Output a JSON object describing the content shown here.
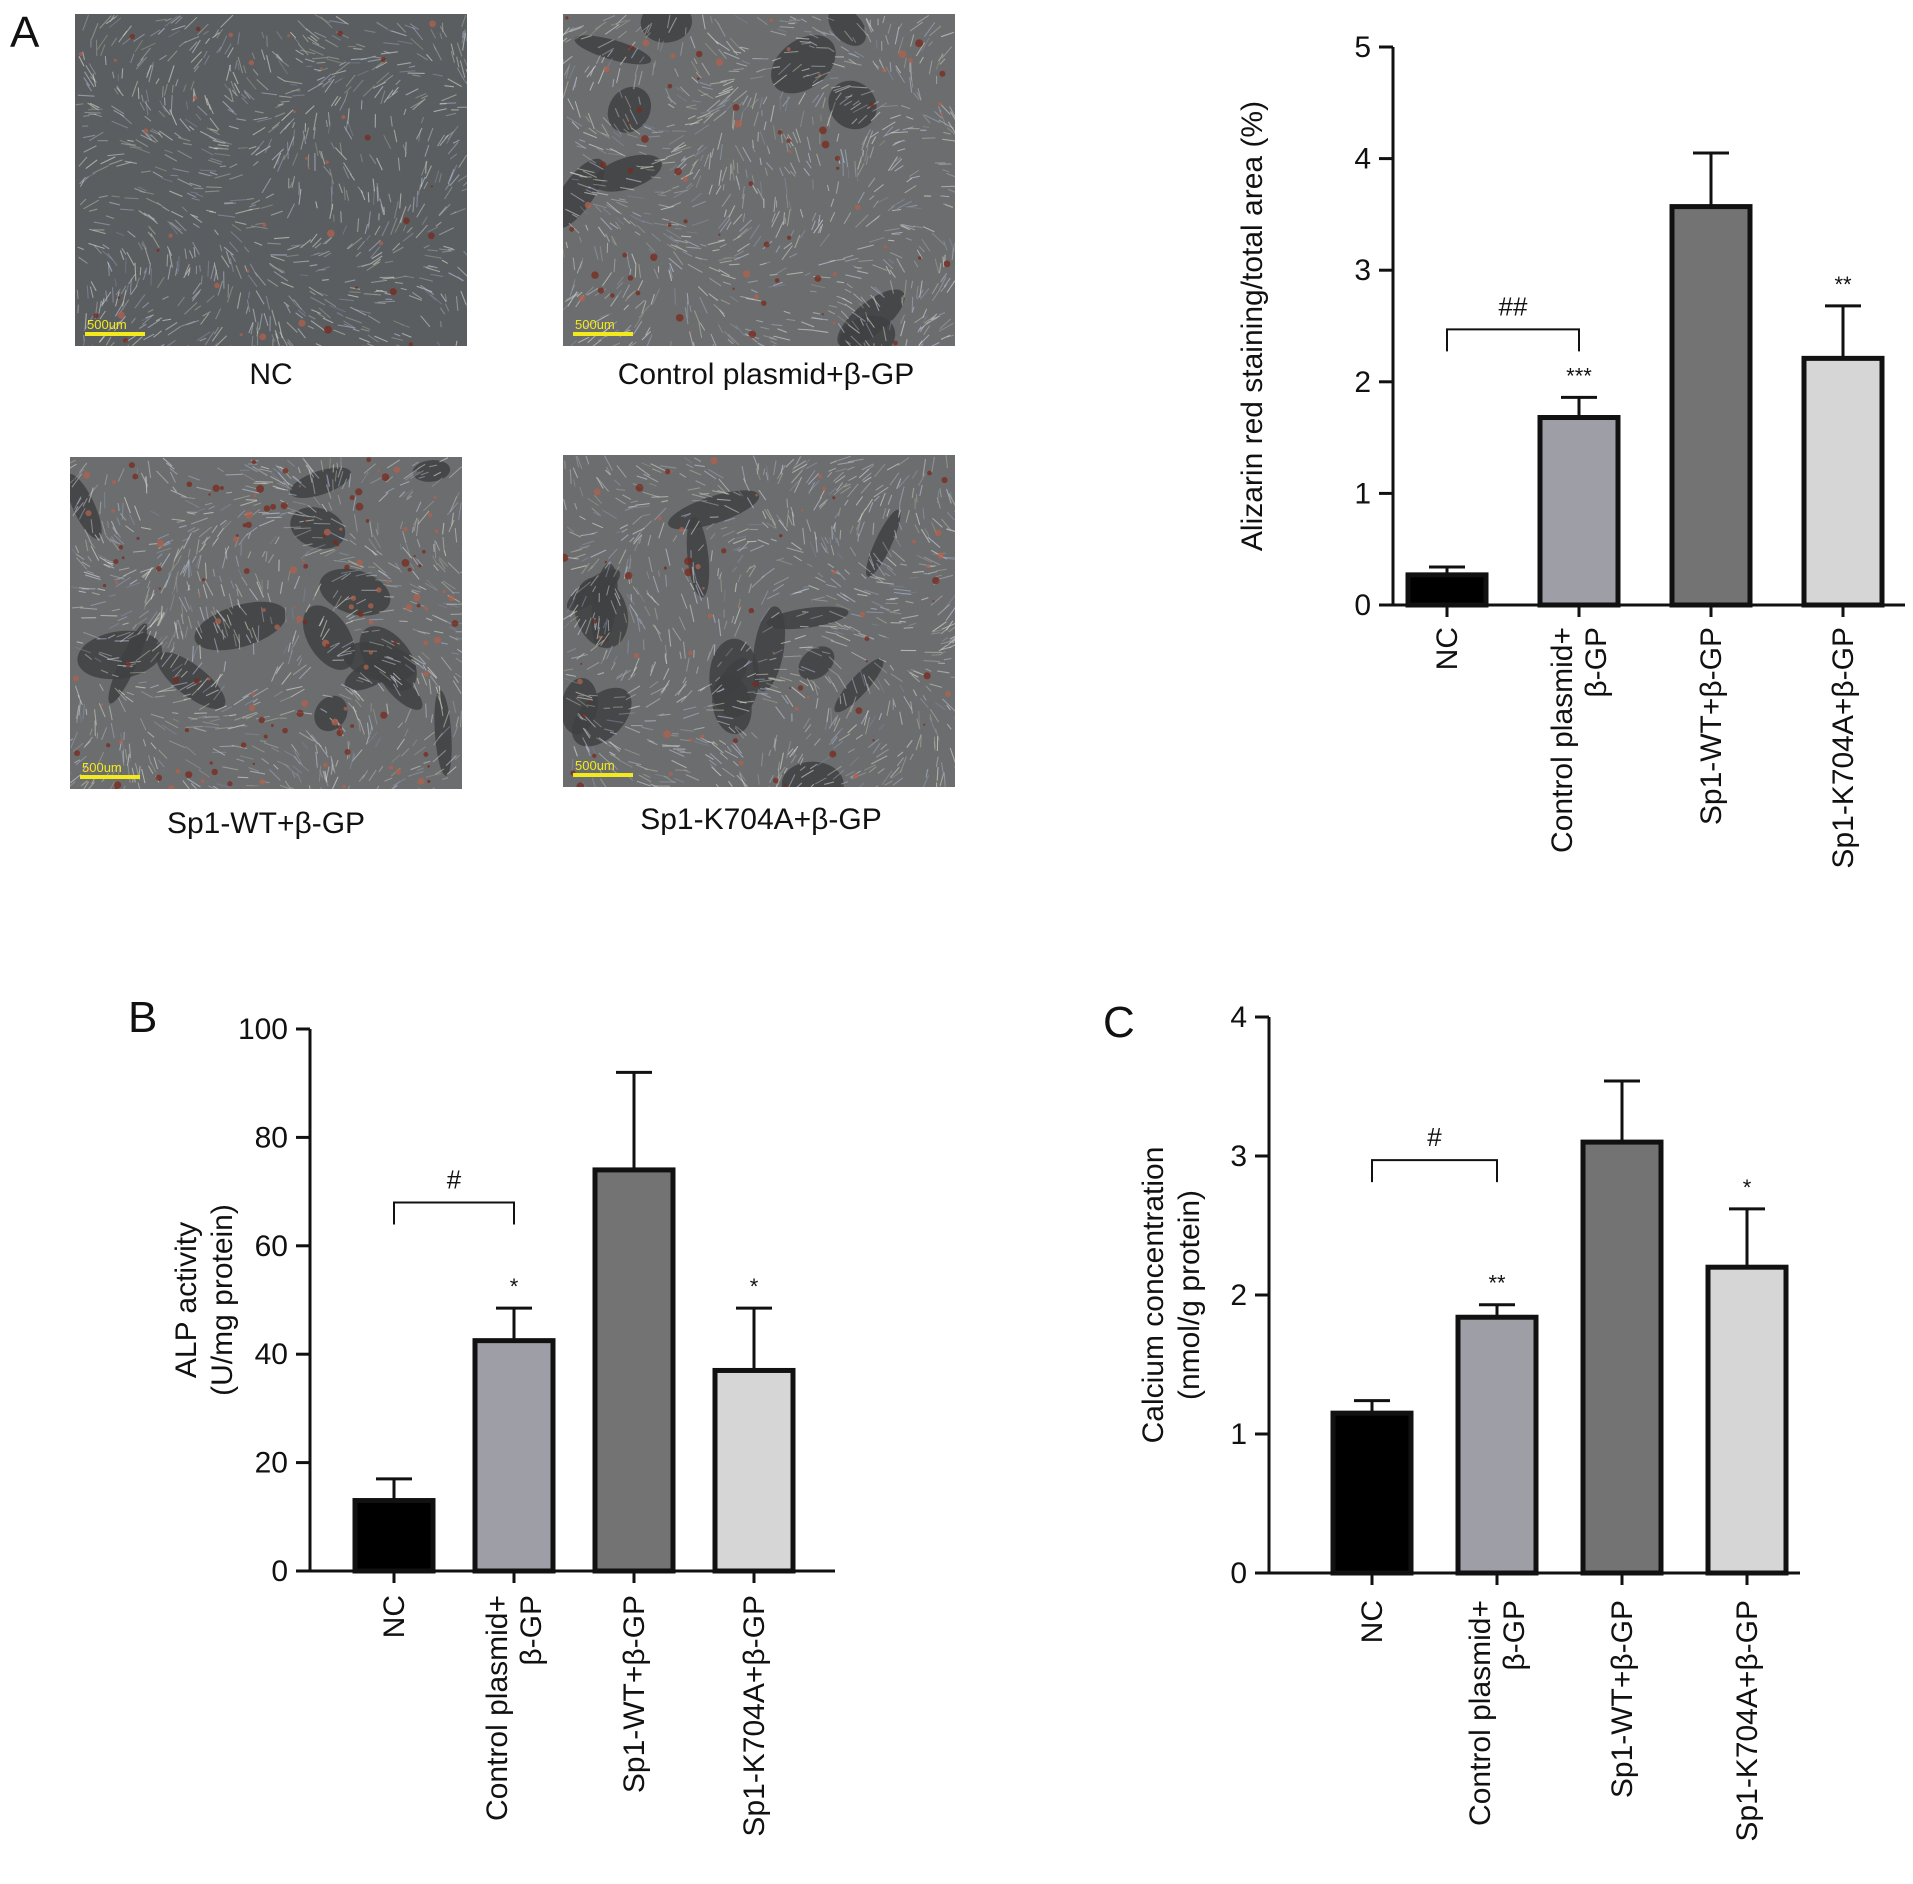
{
  "panels": {
    "A": "A",
    "B": "B",
    "C": "C"
  },
  "micrographs": [
    {
      "caption": "NC",
      "scale": "500um",
      "stain": "light"
    },
    {
      "caption": "Control plasmid+β-GP",
      "scale": "500um",
      "stain": "medium"
    },
    {
      "caption": "Sp1-WT+β-GP",
      "scale": "500um",
      "stain": "heavy"
    },
    {
      "caption": "Sp1-K704A+β-GP",
      "scale": "500um",
      "stain": "medium"
    }
  ],
  "colors": {
    "NC": "#000000",
    "Control": "#9e9ea6",
    "SpWT": "#737373",
    "SpK704A": "#d6d6d6",
    "scalebar": "#f2ea1c"
  },
  "chart_data": [
    {
      "id": "A",
      "type": "bar",
      "title": "",
      "ylabel": "Alizarin red staining/total area (%)",
      "ylim": [
        0,
        5
      ],
      "yticks": [
        "0",
        "1",
        "2",
        "3",
        "4",
        "5"
      ],
      "categories": [
        "NC",
        "Control plasmid+\nβ-GP",
        "Sp1-WT+β-GP",
        "Sp1-K704A+β-GP"
      ],
      "values": [
        0.27,
        1.68,
        3.57,
        2.21
      ],
      "errors": [
        0.07,
        0.18,
        0.48,
        0.47
      ],
      "stars": [
        "",
        "***",
        "",
        "**"
      ],
      "bracket": {
        "from": 0,
        "to": 1,
        "label": "##",
        "y": 2.47
      }
    },
    {
      "id": "B",
      "type": "bar",
      "title": "",
      "ylabel": "ALP activity\n(U/mg protein)",
      "ylim": [
        0,
        100
      ],
      "yticks": [
        "0",
        "20",
        "40",
        "60",
        "80",
        "100"
      ],
      "categories": [
        "NC",
        "Control plasmid+\nβ-GP",
        "Sp1-WT+β-GP",
        "Sp1-K704A+β-GP"
      ],
      "values": [
        13,
        42.5,
        74,
        37
      ],
      "errors": [
        4,
        6,
        18,
        11.5
      ],
      "stars": [
        "",
        "*",
        "",
        "*"
      ],
      "bracket": {
        "from": 0,
        "to": 1,
        "label": "#",
        "y": 68
      }
    },
    {
      "id": "C",
      "type": "bar",
      "title": "",
      "ylabel": "Calcium concentration\n(nmol/g protein)",
      "ylim": [
        0,
        4
      ],
      "yticks": [
        "0",
        "1",
        "2",
        "3",
        "4"
      ],
      "categories": [
        "NC",
        "Control plasmid+\nβ-GP",
        "Sp1-WT+β-GP",
        "Sp1-K704A+β-GP"
      ],
      "values": [
        1.15,
        1.84,
        3.1,
        2.2
      ],
      "errors": [
        0.09,
        0.09,
        0.44,
        0.42
      ],
      "stars": [
        "",
        "**",
        "",
        "*"
      ],
      "bracket": {
        "from": 0,
        "to": 1,
        "label": "#",
        "y": 2.97
      }
    }
  ]
}
